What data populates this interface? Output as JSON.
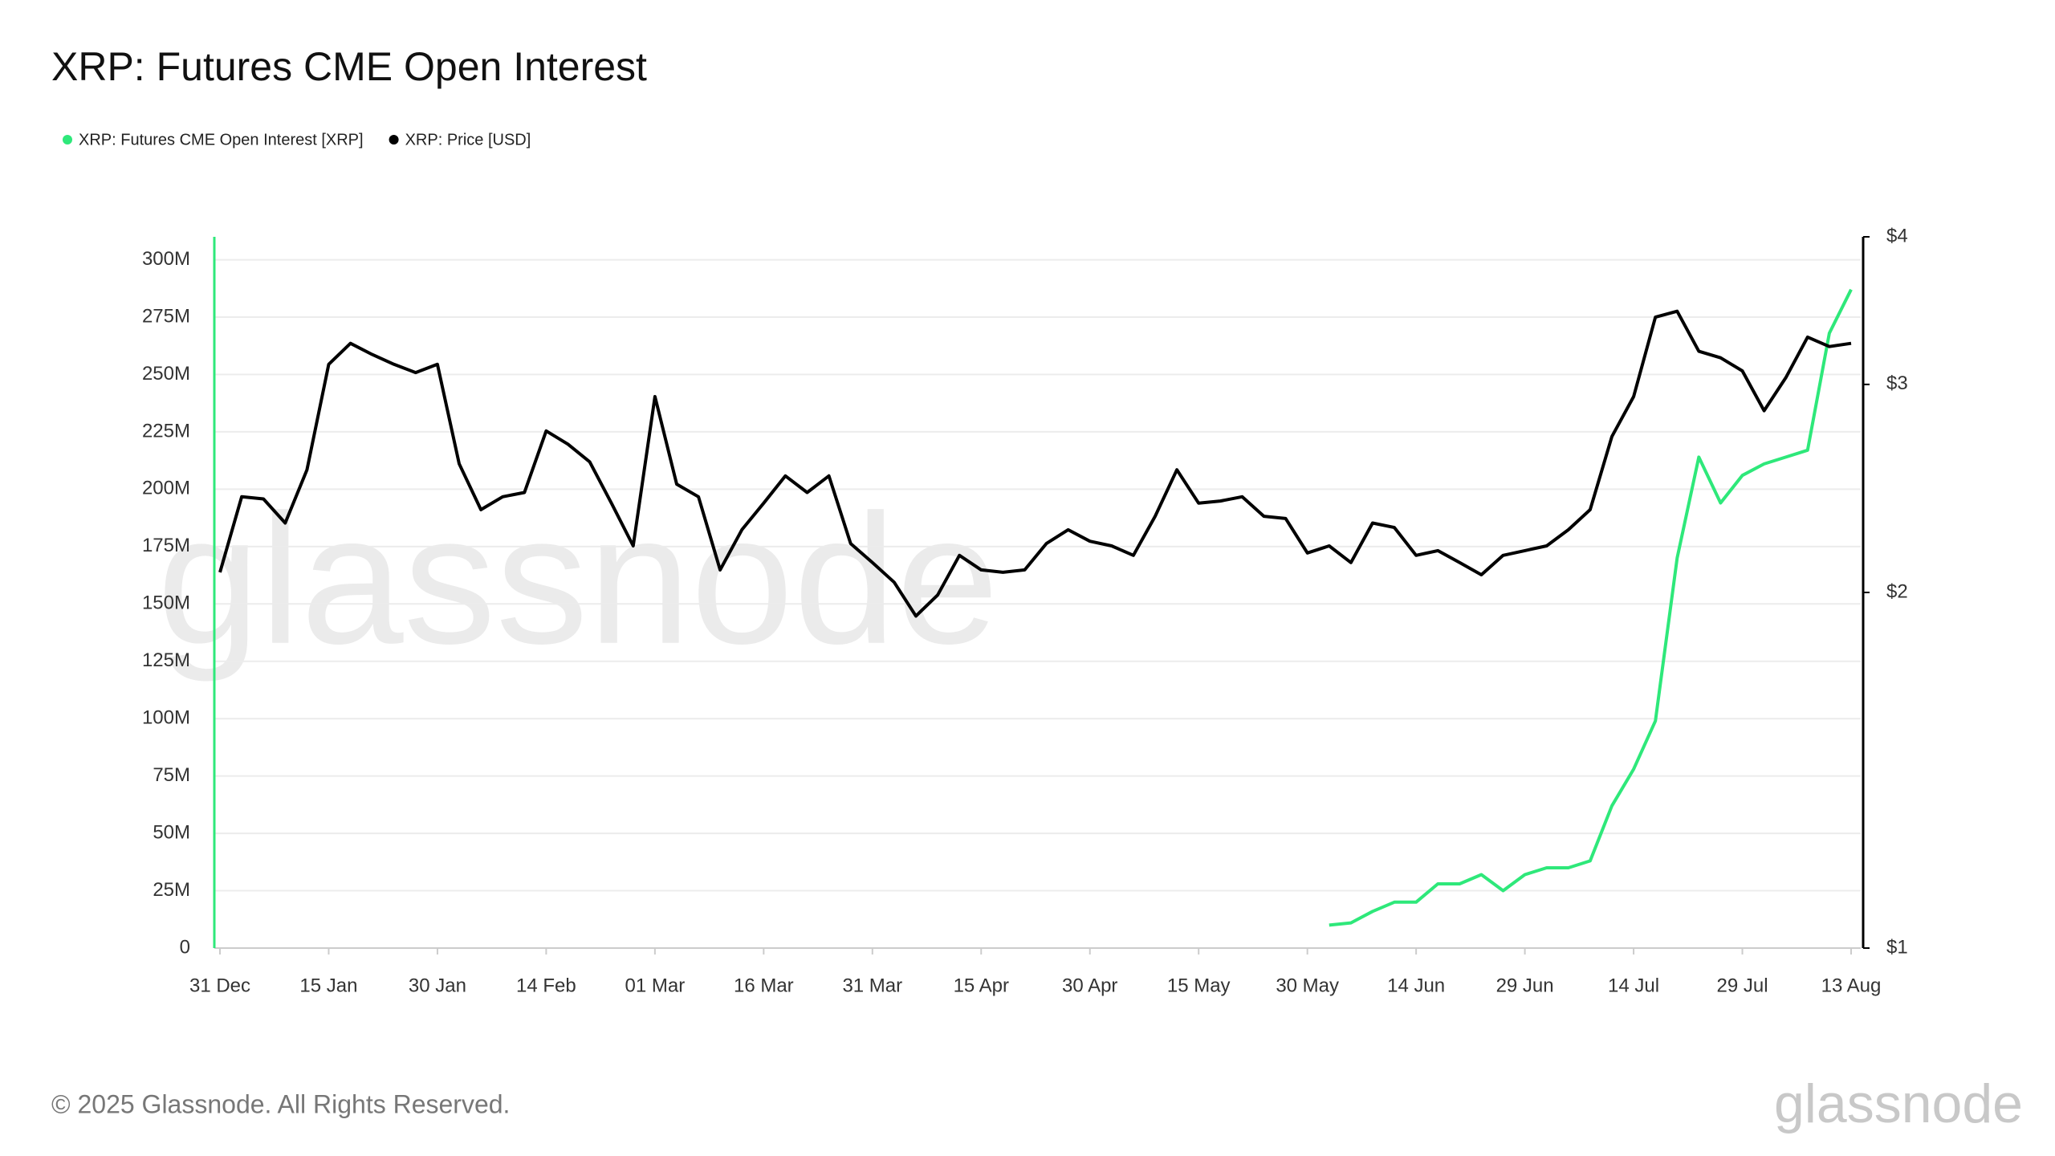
{
  "chart_data": {
    "type": "line",
    "title": "XRP: Futures CME Open Interest",
    "watermark": "glassnode",
    "footer": "© 2025 Glassnode. All Rights Reserved.",
    "logo": "glassnode",
    "categories": [
      "31 Dec",
      null,
      null,
      null,
      null,
      "15 Jan",
      null,
      null,
      null,
      null,
      "30 Jan",
      null,
      null,
      null,
      null,
      "14 Feb",
      null,
      null,
      null,
      null,
      "01 Mar",
      null,
      null,
      null,
      null,
      "16 Mar",
      null,
      null,
      null,
      null,
      "31 Mar",
      null,
      null,
      null,
      null,
      "15 Apr",
      null,
      null,
      null,
      null,
      "30 Apr",
      null,
      null,
      null,
      null,
      "15 May",
      null,
      null,
      null,
      null,
      "30 May",
      null,
      null,
      null,
      null,
      "14 Jun",
      null,
      null,
      null,
      null,
      "29 Jun",
      null,
      null,
      null,
      null,
      "14 Jul",
      null,
      null,
      null,
      null,
      "29 Jul",
      null,
      null,
      null,
      null,
      "13 Aug"
    ],
    "series": [
      {
        "name": "XRP: Futures CME Open Interest [XRP]",
        "color": "#2ee87a",
        "axis": "y",
        "values": [
          null,
          null,
          null,
          null,
          null,
          null,
          null,
          null,
          null,
          null,
          null,
          null,
          null,
          null,
          null,
          null,
          null,
          null,
          null,
          null,
          null,
          null,
          null,
          null,
          null,
          null,
          null,
          null,
          null,
          null,
          null,
          null,
          null,
          null,
          null,
          null,
          null,
          null,
          null,
          null,
          null,
          null,
          null,
          null,
          null,
          null,
          null,
          null,
          null,
          null,
          null,
          10,
          11,
          16,
          20,
          20,
          28,
          28,
          32,
          25,
          32,
          35,
          35,
          38,
          62,
          78,
          99,
          170,
          214,
          194,
          206,
          211,
          214,
          217,
          268,
          287
        ]
      },
      {
        "name": "XRP: Price [USD]",
        "color": "#000000",
        "axis": "y2",
        "values": [
          2.08,
          2.41,
          2.4,
          2.29,
          2.54,
          3.12,
          3.25,
          3.18,
          3.12,
          3.07,
          3.12,
          2.57,
          2.35,
          2.41,
          2.43,
          2.74,
          2.67,
          2.58,
          2.38,
          2.19,
          2.93,
          2.47,
          2.41,
          2.09,
          2.26,
          2.38,
          2.51,
          2.43,
          2.51,
          2.2,
          2.12,
          2.04,
          1.91,
          1.99,
          2.15,
          2.09,
          2.08,
          2.09,
          2.2,
          2.26,
          2.21,
          2.19,
          2.15,
          2.32,
          2.54,
          2.38,
          2.39,
          2.41,
          2.32,
          2.31,
          2.16,
          2.19,
          2.12,
          2.29,
          2.27,
          2.15,
          2.17,
          2.12,
          2.07,
          2.15,
          2.17,
          2.19,
          2.26,
          2.35,
          2.71,
          2.93,
          3.42,
          3.46,
          3.2,
          3.16,
          3.08,
          2.85,
          3.04,
          3.29,
          3.23,
          3.25
        ]
      }
    ],
    "ylim": [
      0,
      310
    ],
    "yticks": [
      0,
      {
        "value": 25,
        "label": "25M"
      },
      {
        "value": 50,
        "label": "50M"
      },
      {
        "value": 75,
        "label": "75M"
      },
      {
        "value": 100,
        "label": "100M"
      },
      {
        "value": 125,
        "label": "125M"
      },
      {
        "value": 150,
        "label": "150M"
      },
      {
        "value": 175,
        "label": "175M"
      },
      {
        "value": 200,
        "label": "200M"
      },
      {
        "value": 225,
        "label": "225M"
      },
      {
        "value": 250,
        "label": "250M"
      },
      {
        "value": 275,
        "label": "275M"
      },
      {
        "value": 300,
        "label": "300M"
      }
    ],
    "y2lim": [
      1,
      4
    ],
    "y2log": true,
    "y2ticks": [
      {
        "value": 1,
        "label": "$1"
      },
      {
        "value": 2,
        "label": "$2"
      },
      {
        "value": 3,
        "label": "$3"
      },
      {
        "value": 4,
        "label": "$4"
      }
    ],
    "grid": true
  }
}
